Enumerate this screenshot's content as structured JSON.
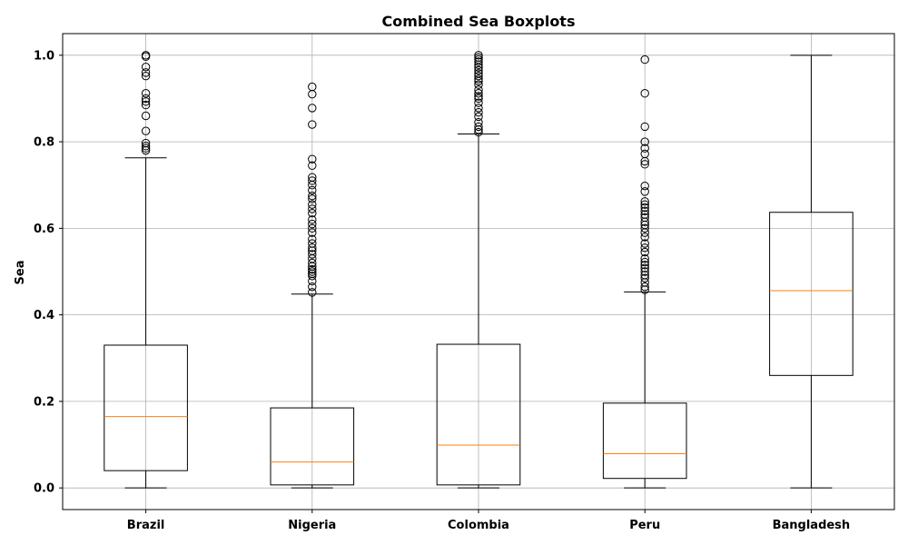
{
  "chart_data": {
    "type": "boxplot",
    "title": "Combined Sea Boxplots",
    "xlabel": "",
    "ylabel": "Sea",
    "ylim": [
      -0.05,
      1.05
    ],
    "yticks": [
      0.0,
      0.2,
      0.4,
      0.6,
      0.8,
      1.0
    ],
    "ytick_labels": [
      "0.0",
      "0.2",
      "0.4",
      "0.6",
      "0.8",
      "1.0"
    ],
    "grid": true,
    "colors": {
      "box": "#000000",
      "median": "#ff7f0e",
      "grid": "#b0b0b0",
      "outlier": "#000000"
    },
    "categories": [
      "Brazil",
      "Nigeria",
      "Colombia",
      "Peru",
      "Bangladesh"
    ],
    "boxes": [
      {
        "name": "Brazil",
        "whisker_low": 0.0,
        "q1": 0.04,
        "median": 0.165,
        "q3": 0.33,
        "whisker_high": 0.763,
        "outliers": [
          0.78,
          0.785,
          0.79,
          0.797,
          0.825,
          0.86,
          0.885,
          0.893,
          0.9,
          0.912,
          0.952,
          0.96,
          0.973,
          0.997,
          1.0
        ]
      },
      {
        "name": "Nigeria",
        "whisker_low": 0.0,
        "q1": 0.007,
        "median": 0.06,
        "q3": 0.185,
        "whisker_high": 0.448,
        "outliers": [
          0.452,
          0.465,
          0.478,
          0.49,
          0.495,
          0.5,
          0.505,
          0.512,
          0.52,
          0.53,
          0.54,
          0.548,
          0.555,
          0.565,
          0.575,
          0.59,
          0.6,
          0.61,
          0.62,
          0.635,
          0.645,
          0.655,
          0.668,
          0.675,
          0.688,
          0.7,
          0.71,
          0.718,
          0.745,
          0.76,
          0.84,
          0.878,
          0.91,
          0.927
        ]
      },
      {
        "name": "Colombia",
        "whisker_low": 0.0,
        "q1": 0.007,
        "median": 0.099,
        "q3": 0.332,
        "whisker_high": 0.818,
        "outliers": [
          0.822,
          0.828,
          0.835,
          0.845,
          0.858,
          0.868,
          0.878,
          0.89,
          0.9,
          0.905,
          0.912,
          0.92,
          0.932,
          0.94,
          0.945,
          0.952,
          0.958,
          0.965,
          0.972,
          0.978,
          0.985,
          0.99,
          0.995,
          1.0
        ]
      },
      {
        "name": "Peru",
        "whisker_low": 0.0,
        "q1": 0.022,
        "median": 0.079,
        "q3": 0.196,
        "whisker_high": 0.453,
        "outliers": [
          0.458,
          0.465,
          0.475,
          0.485,
          0.492,
          0.5,
          0.508,
          0.515,
          0.522,
          0.53,
          0.545,
          0.555,
          0.565,
          0.58,
          0.59,
          0.6,
          0.608,
          0.615,
          0.625,
          0.632,
          0.64,
          0.648,
          0.655,
          0.662,
          0.685,
          0.698,
          0.748,
          0.755,
          0.772,
          0.785,
          0.8,
          0.835,
          0.912,
          0.99
        ]
      },
      {
        "name": "Bangladesh",
        "whisker_low": 0.0,
        "q1": 0.26,
        "median": 0.456,
        "q3": 0.637,
        "whisker_high": 1.0,
        "outliers": []
      }
    ]
  }
}
